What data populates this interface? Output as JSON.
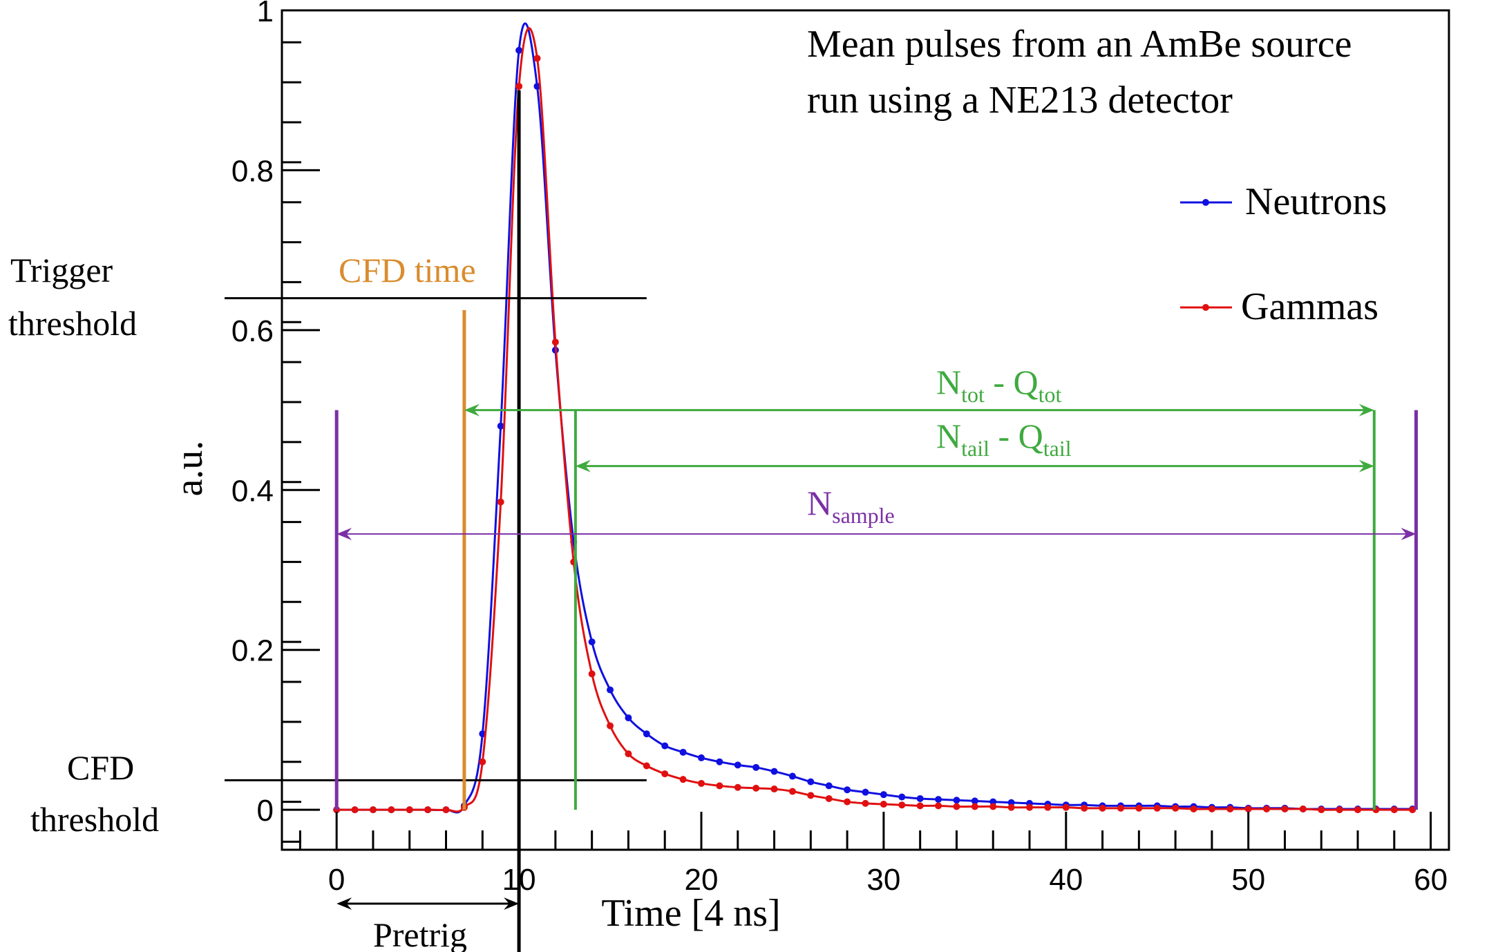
{
  "chart_data": {
    "type": "line",
    "title_lines": [
      "Mean pulses from an AmBe source",
      "run using a NE213 detector"
    ],
    "xlabel": "Time [4 ns]",
    "ylabel": "a.u.",
    "xlim": [
      -3,
      61
    ],
    "ylim": [
      -0.05,
      1.0
    ],
    "x_ticks": [
      0,
      10,
      20,
      30,
      40,
      50,
      60
    ],
    "y_ticks": [
      0,
      0.2,
      0.4,
      0.6,
      0.8,
      1
    ],
    "y_tick_labels": [
      "0",
      "0.2",
      "0.4",
      "0.6",
      "0.8",
      "1"
    ],
    "x_tick_labels": [
      "0",
      "10",
      "20",
      "30",
      "40",
      "50",
      "60"
    ],
    "grid": false,
    "legend_position": "top-right",
    "series": [
      {
        "name": "Neutrons",
        "color": "#1010e0",
        "x": [
          0,
          1,
          2,
          3,
          4,
          5,
          6,
          7,
          8,
          9,
          10,
          11,
          12,
          13,
          14,
          15,
          16,
          17,
          18,
          19,
          20,
          21,
          22,
          23,
          24,
          25,
          26,
          27,
          28,
          29,
          30,
          31,
          32,
          33,
          34,
          35,
          36,
          37,
          38,
          39,
          40,
          41,
          42,
          43,
          44,
          45,
          46,
          47,
          48,
          49,
          50,
          51,
          52,
          53,
          54,
          55,
          56,
          57,
          58,
          59
        ],
        "y": [
          0,
          0,
          0,
          0,
          0,
          0,
          0,
          0.005,
          0.095,
          0.48,
          0.95,
          0.905,
          0.575,
          0.335,
          0.21,
          0.15,
          0.115,
          0.095,
          0.08,
          0.072,
          0.065,
          0.06,
          0.056,
          0.053,
          0.048,
          0.042,
          0.035,
          0.03,
          0.025,
          0.022,
          0.019,
          0.016,
          0.014,
          0.013,
          0.012,
          0.011,
          0.01,
          0.009,
          0.008,
          0.007,
          0.006,
          0.006,
          0.005,
          0.005,
          0.005,
          0.005,
          0.004,
          0.004,
          0.003,
          0.003,
          0.002,
          0.002,
          0.002,
          0.001,
          0.001,
          0.001,
          0.001,
          0.001,
          0.001,
          0.001
        ]
      },
      {
        "name": "Gammas",
        "color": "#e01010",
        "x": [
          0,
          1,
          2,
          3,
          4,
          5,
          6,
          7,
          8,
          9,
          10,
          11,
          12,
          13,
          14,
          15,
          16,
          17,
          18,
          19,
          20,
          21,
          22,
          23,
          24,
          25,
          26,
          27,
          28,
          29,
          30,
          31,
          32,
          33,
          34,
          35,
          36,
          37,
          38,
          39,
          40,
          41,
          42,
          43,
          44,
          45,
          46,
          47,
          48,
          49,
          50,
          51,
          52,
          53,
          54,
          55,
          56,
          57,
          58,
          59
        ],
        "y": [
          0,
          0,
          0,
          0,
          0,
          0,
          0,
          0.003,
          0.06,
          0.385,
          0.905,
          0.94,
          0.585,
          0.31,
          0.17,
          0.105,
          0.07,
          0.055,
          0.045,
          0.038,
          0.033,
          0.03,
          0.028,
          0.027,
          0.026,
          0.023,
          0.018,
          0.014,
          0.01,
          0.008,
          0.007,
          0.006,
          0.005,
          0.005,
          0.004,
          0.004,
          0.004,
          0.003,
          0.003,
          0.003,
          0.003,
          0.002,
          0.002,
          0.002,
          0.002,
          0.002,
          0.002,
          0.001,
          0.001,
          0.001,
          0.001,
          0.001,
          0.001,
          0.001,
          0.0,
          0.0,
          0.0,
          0.0,
          0.0,
          0.0
        ]
      }
    ],
    "annotations": {
      "trigger_threshold": {
        "label_lines": [
          "Trigger",
          "threshold"
        ],
        "y": 0.64,
        "x_end": 17
      },
      "cfd_threshold": {
        "label_lines": [
          "CFD",
          "threshold"
        ],
        "y": 0.037,
        "x_end": 17
      },
      "cfd_time": {
        "label": "CFD time",
        "x": 7,
        "y_top": 0.625,
        "color": "#d98c2e"
      },
      "peak_line": {
        "x": 10,
        "y_top": 0.9
      },
      "tail_start": {
        "x": 13.1,
        "y_top": 0.5
      },
      "window_end": {
        "x": 56.9,
        "y_top": 0.5
      },
      "sample_start": {
        "x": 0,
        "y_top": 0.5,
        "color": "#7b2fa6"
      },
      "sample_end": {
        "x": 59.2,
        "y_top": 0.5,
        "color": "#7b2fa6"
      },
      "ntot_qtot": {
        "label_main_1": "N",
        "label_sub_1": "tot",
        "label_mid": " - Q",
        "label_sub_2": "tot",
        "x0": 7,
        "x1": 56.9,
        "y": 0.5,
        "color": "#3faa3f"
      },
      "ntail_qtail": {
        "label_main_1": "N",
        "label_sub_1": "tail",
        "label_mid": " - Q",
        "label_sub_2": "tail",
        "x0": 13.1,
        "x1": 56.9,
        "y": 0.43,
        "color": "#3faa3f"
      },
      "nsample": {
        "label_main": "N",
        "label_sub": "sample",
        "x0": 0,
        "x1": 59.2,
        "y": 0.345,
        "color": "#7b2fa6"
      },
      "pretrig": {
        "label": "Pretrig",
        "x0": 0,
        "x1": 10
      }
    }
  }
}
